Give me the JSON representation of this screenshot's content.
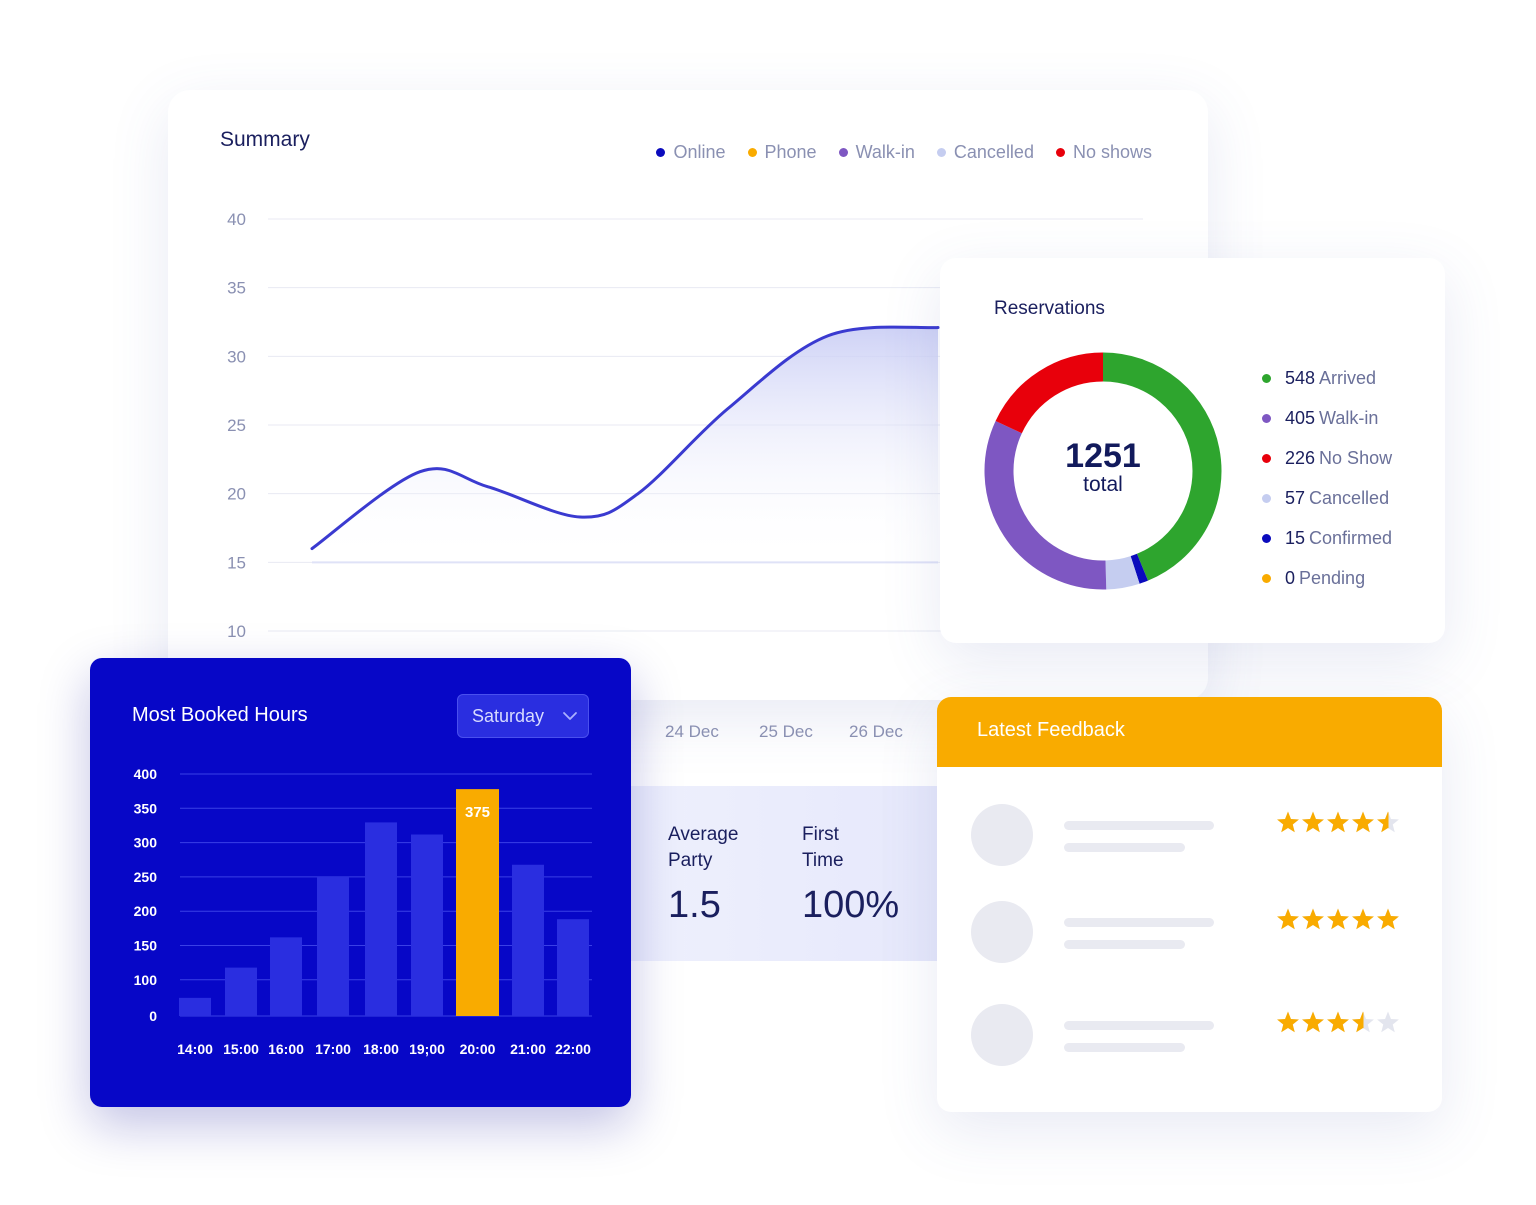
{
  "summary": {
    "title": "Summary",
    "legend": [
      {
        "label": "Online",
        "color": "#0b0bbd"
      },
      {
        "label": "Phone",
        "color": "#f9ab00"
      },
      {
        "label": "Walk-in",
        "color": "#7e57c2"
      },
      {
        "label": "Cancelled",
        "color": "#c5cdf0"
      },
      {
        "label": "No shows",
        "color": "#e8000b"
      }
    ],
    "y_ticks": [
      "40",
      "35",
      "30",
      "25",
      "20",
      "15",
      "10"
    ],
    "dates": [
      "24 Dec",
      "25 Dec",
      "26 Dec"
    ],
    "line_color": "#3a3ad0"
  },
  "chart_data": [
    {
      "type": "line",
      "ylim": [
        10,
        40
      ],
      "y_ticks": [
        10,
        15,
        20,
        25,
        30,
        35,
        40
      ],
      "x_tick_labels": [
        "24 Dec",
        "25 Dec",
        "26 Dec"
      ],
      "x": [
        0,
        1,
        2,
        3,
        4,
        5,
        6,
        7
      ],
      "values": [
        16,
        21.6,
        20.5,
        18.3,
        20.0,
        26.2,
        31.5,
        32.1
      ]
    },
    {
      "type": "bar",
      "title": "Most Booked Hours",
      "categories": [
        "14:00",
        "15:00",
        "16:00",
        "17:00",
        "18:00",
        "19;00",
        "20:00",
        "21:00",
        "22:00"
      ],
      "values": [
        30,
        80,
        130,
        230,
        320,
        300,
        375,
        250,
        160
      ],
      "highlight": {
        "category": "20:00",
        "label": "375"
      },
      "ylim": [
        0,
        400
      ],
      "y_ticks": [
        "400",
        "350",
        "300",
        "250",
        "200",
        "150",
        "100",
        "0"
      ]
    },
    {
      "type": "pie",
      "title": "Reservations",
      "center_value": "1251",
      "center_label": "total",
      "slices": [
        {
          "label": "Arrived",
          "value": 548,
          "color": "#2ea52e"
        },
        {
          "label": "Confirmed",
          "value": 15,
          "color": "#0b0bbd"
        },
        {
          "label": "Cancelled",
          "value": 57,
          "color": "#c5cdf0"
        },
        {
          "label": "Walk-in",
          "value": 405,
          "color": "#7e57c2"
        },
        {
          "label": "No Show",
          "value": 226,
          "color": "#e8000b"
        },
        {
          "label": "Pending",
          "value": 0,
          "color": "#f9ab00"
        }
      ]
    }
  ],
  "stats": {
    "avg_party_label": "Average Party",
    "avg_party_value": "1.5",
    "first_time_label": "First Time",
    "first_time_value": "100%"
  },
  "reservations": {
    "title": "Reservations",
    "total_value": "1251",
    "total_label": "total",
    "legend": [
      {
        "num": "548",
        "label": "Arrived",
        "color": "#2ea52e"
      },
      {
        "num": "405",
        "label": "Walk-in",
        "color": "#7e57c2"
      },
      {
        "num": "226",
        "label": "No Show",
        "color": "#e8000b"
      },
      {
        "num": "57",
        "label": "Cancelled",
        "color": "#c5cdf0"
      },
      {
        "num": "15",
        "label": "Confirmed",
        "color": "#0b0bbd"
      },
      {
        "num": "0",
        "label": "Pending",
        "color": "#f9ab00"
      }
    ]
  },
  "booked": {
    "title": "Most Booked Hours",
    "day": "Saturday",
    "bar_color": "#2a2ee0",
    "highlight_color": "#f9ab00"
  },
  "feedback": {
    "title": "Latest Feedback",
    "ratings": [
      4.5,
      5,
      3.5
    ],
    "star_color": "#f9ab00"
  }
}
